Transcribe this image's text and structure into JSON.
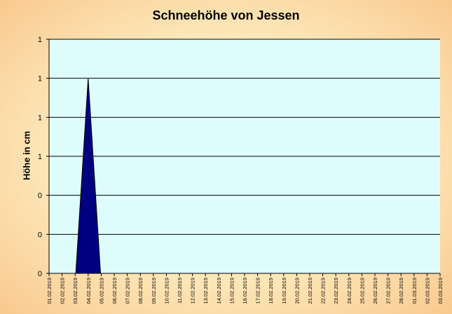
{
  "chart_data": {
    "type": "area",
    "title": "Schneehöhe von Jessen",
    "xlabel": "",
    "ylabel": "Höhe in cm",
    "categories": [
      "01.02.2019",
      "02.02.2019",
      "03.02.2019",
      "04.02.2019",
      "05.02.2019",
      "06.02.2019",
      "07.02.2019",
      "08.02.2019",
      "09.02.2019",
      "10.02.2019",
      "11.02.2019",
      "12.02.2019",
      "13.02.2019",
      "14.02.2019",
      "15.02.2019",
      "16.02.2019",
      "17.02.2019",
      "18.02.2019",
      "19.02.2019",
      "20.02.2019",
      "21.02.2019",
      "22.02.2019",
      "23.02.2019",
      "24.02.2019",
      "25.02.2019",
      "26.02.2019",
      "27.02.2019",
      "28.02.2019",
      "01.03.2019",
      "02.03.2019",
      "03.03.2019"
    ],
    "values": [
      0,
      0,
      0,
      1,
      0,
      0,
      0,
      0,
      0,
      0,
      0,
      0,
      0,
      0,
      0,
      0,
      0,
      0,
      0,
      0,
      0,
      0,
      0,
      0,
      0,
      0,
      0,
      0,
      0,
      0,
      0
    ],
    "ylim": [
      0,
      1.2
    ],
    "y_tick_labels": [
      "0",
      "0",
      "0",
      "1",
      "1",
      "1",
      "1"
    ],
    "grid": true,
    "colors": {
      "fill": "#000080",
      "plot_background": "#dffcfc",
      "gridline": "#000000"
    }
  }
}
